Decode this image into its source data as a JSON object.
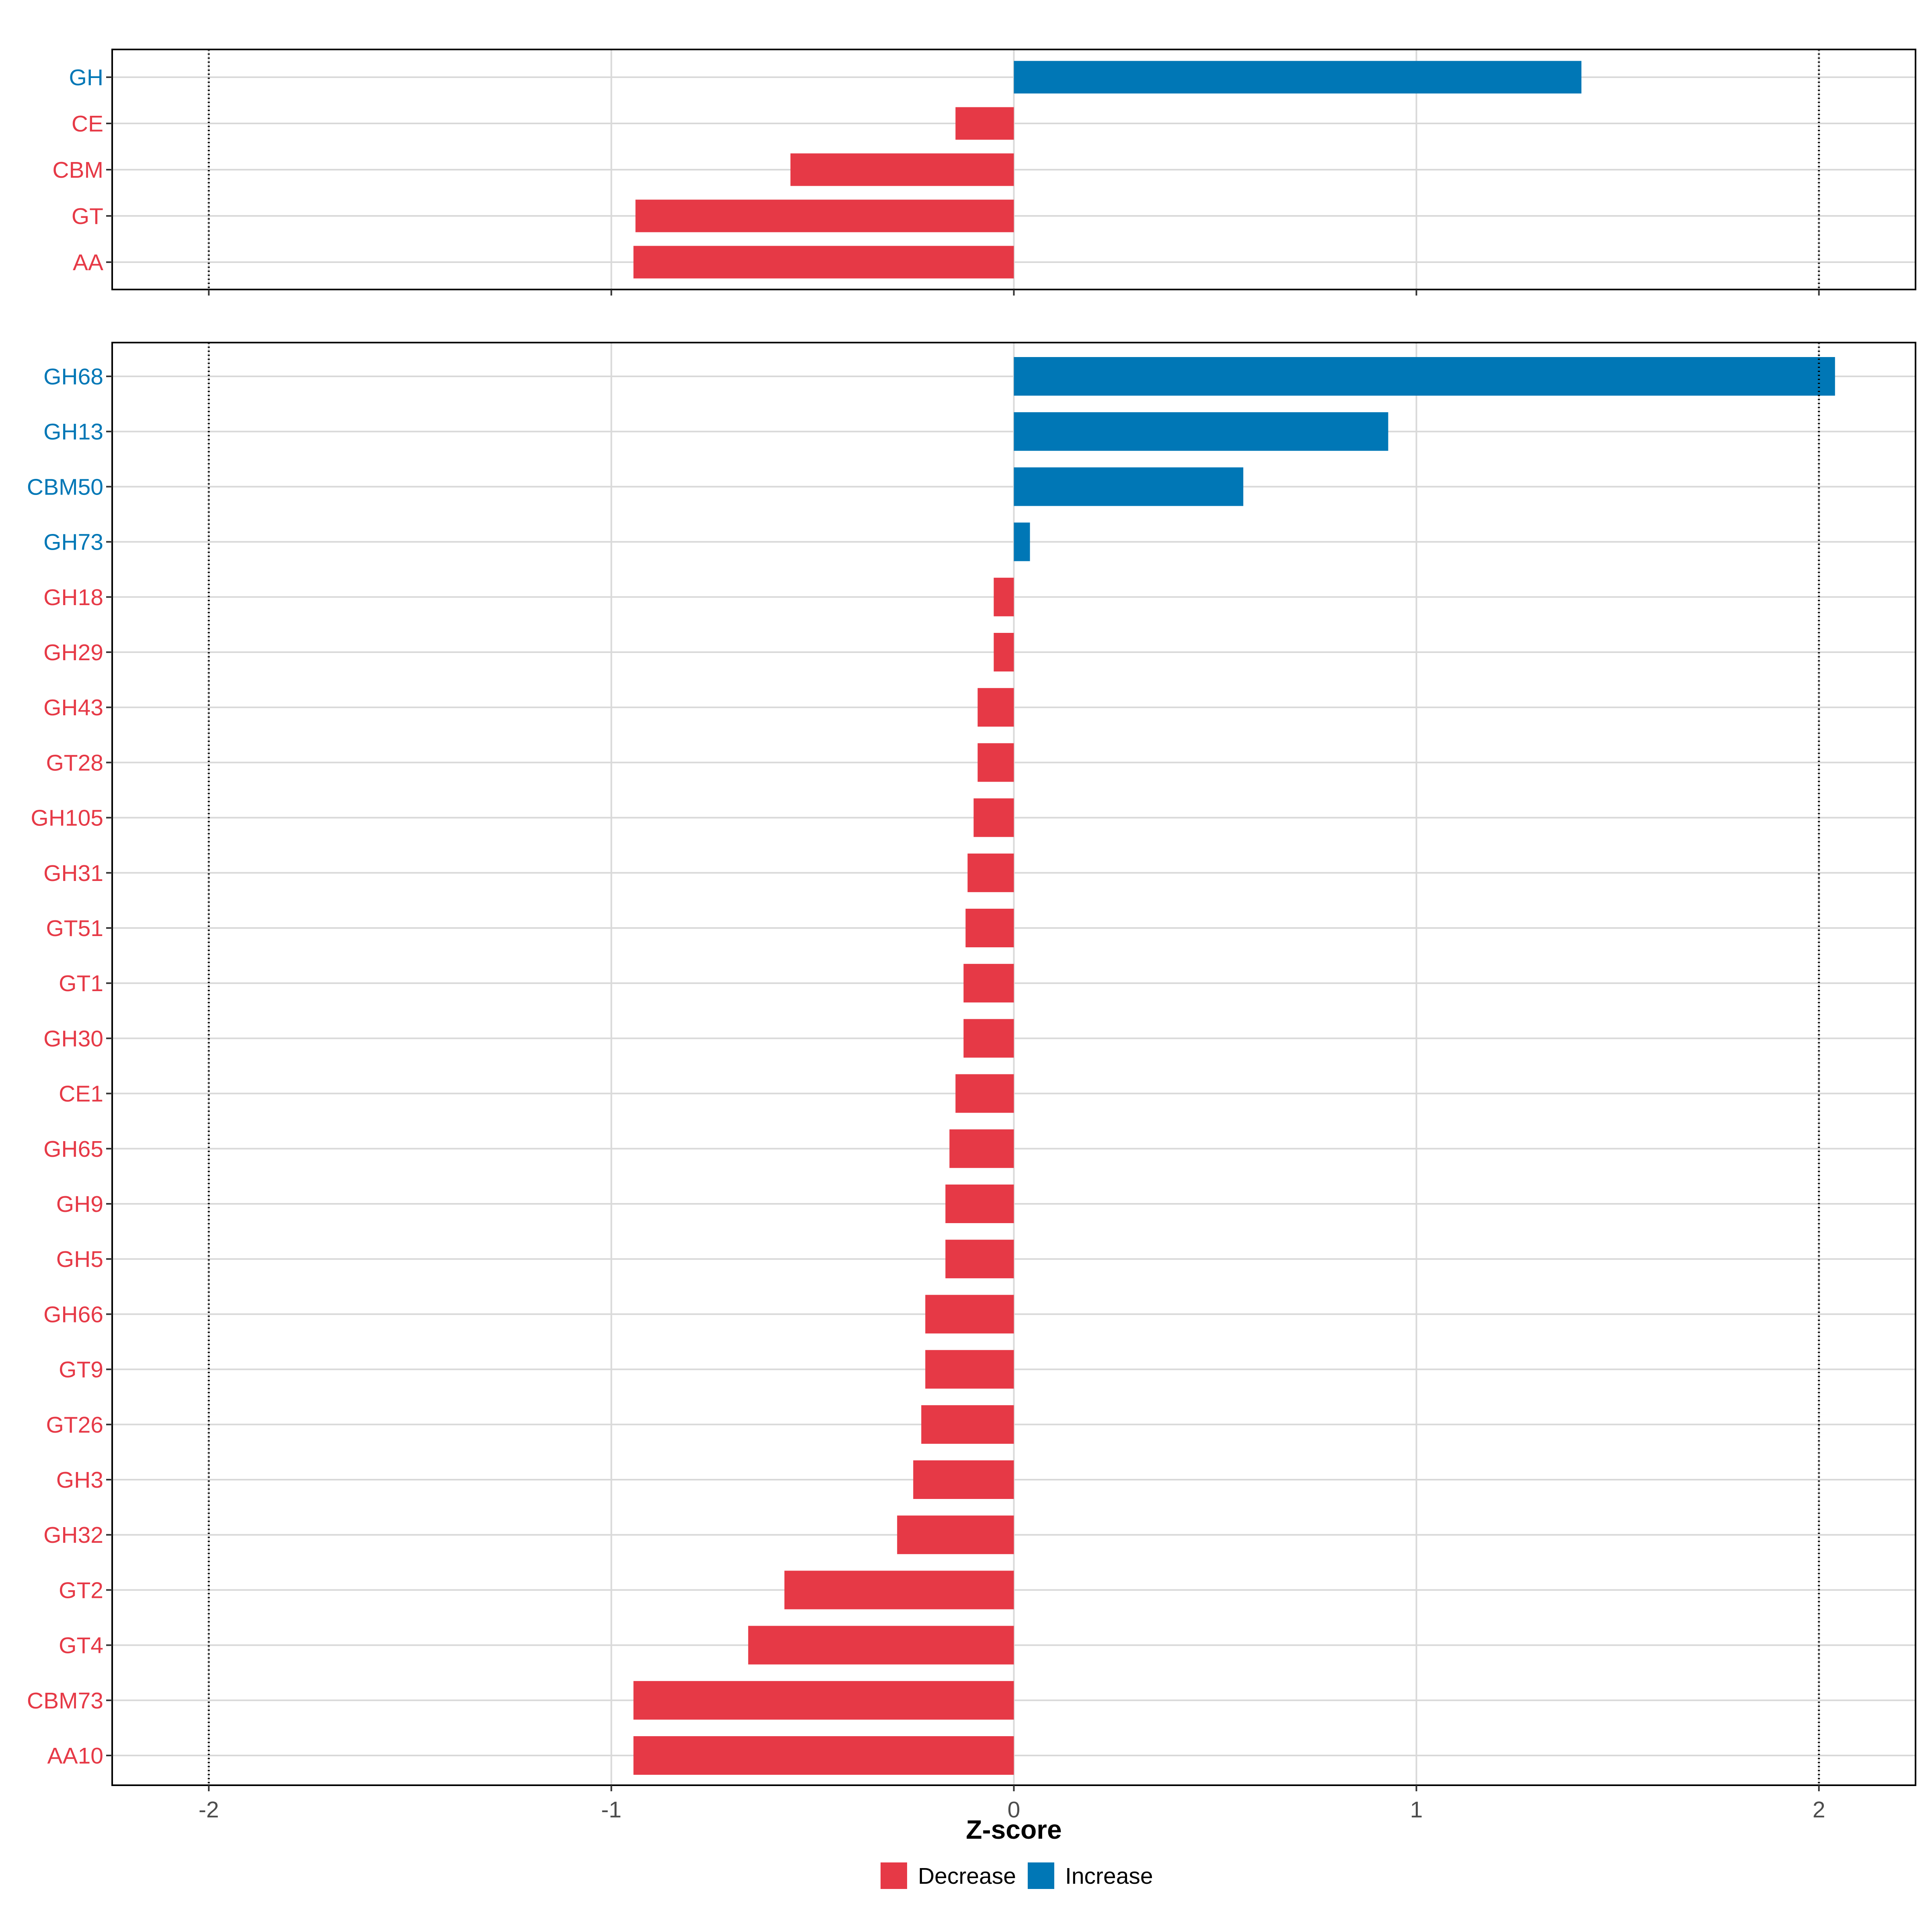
{
  "chart_data": {
    "type": "bar",
    "orientation": "horizontal",
    "xlabel": "Z-score",
    "xlim": [
      -2.24,
      2.24
    ],
    "x_ticks": [
      "-2",
      "-1",
      "0",
      "1",
      "2"
    ],
    "x_tick_values": [
      -2,
      -1,
      0,
      1,
      2
    ],
    "reference_lines": [
      -2,
      2
    ],
    "colors": {
      "Decrease": "#E63946",
      "Increase": "#0077B6"
    },
    "legend": {
      "position": "bottom",
      "entries": [
        {
          "label": "Decrease",
          "color": "#E63946"
        },
        {
          "label": "Increase",
          "color": "#0077B6"
        }
      ]
    },
    "panels": [
      {
        "name": "cazy-classes",
        "categories": [
          "GH",
          "CE",
          "CBM",
          "GT",
          "AA"
        ],
        "values": [
          1.41,
          -0.145,
          -0.555,
          -0.94,
          -0.945
        ],
        "direction": [
          "Increase",
          "Decrease",
          "Decrease",
          "Decrease",
          "Decrease"
        ]
      },
      {
        "name": "cazy-families",
        "categories": [
          "GH68",
          "GH13",
          "CBM50",
          "GH73",
          "GH18",
          "GH29",
          "GH43",
          "GT28",
          "GH105",
          "GH31",
          "GT51",
          "GT1",
          "GH30",
          "CE1",
          "GH65",
          "GH9",
          "GH5",
          "GH66",
          "GT9",
          "GT26",
          "GH3",
          "GH32",
          "GT2",
          "GT4",
          "CBM73",
          "AA10"
        ],
        "values": [
          2.04,
          0.93,
          0.57,
          0.04,
          -0.05,
          -0.05,
          -0.09,
          -0.09,
          -0.1,
          -0.115,
          -0.12,
          -0.125,
          -0.125,
          -0.145,
          -0.16,
          -0.17,
          -0.17,
          -0.22,
          -0.22,
          -0.23,
          -0.25,
          -0.29,
          -0.57,
          -0.66,
          -0.945,
          -0.945
        ],
        "direction": [
          "Increase",
          "Increase",
          "Increase",
          "Increase",
          "Decrease",
          "Decrease",
          "Decrease",
          "Decrease",
          "Decrease",
          "Decrease",
          "Decrease",
          "Decrease",
          "Decrease",
          "Decrease",
          "Decrease",
          "Decrease",
          "Decrease",
          "Decrease",
          "Decrease",
          "Decrease",
          "Decrease",
          "Decrease",
          "Decrease",
          "Decrease",
          "Decrease",
          "Decrease"
        ]
      }
    ]
  }
}
